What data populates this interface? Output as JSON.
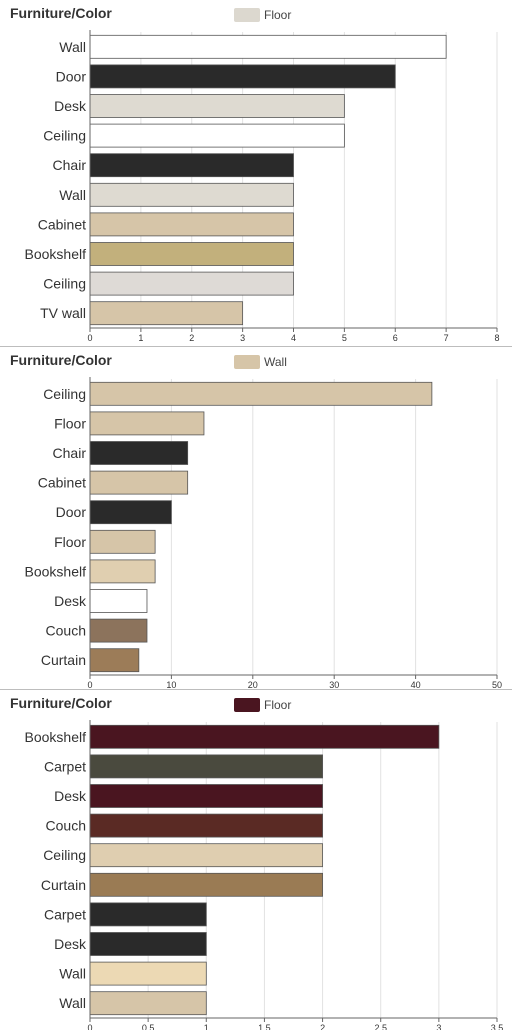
{
  "chart_data": [
    {
      "type": "bar",
      "title": "Furniture/Color",
      "legend": {
        "label": "Floor",
        "color": "#dcd8cf",
        "placement": "top-center"
      },
      "categories": [
        "Wall",
        "Door",
        "Desk",
        "Ceiling",
        "Chair",
        "Wall",
        "Cabinet",
        "Bookshelf",
        "Ceiling",
        "TV wall"
      ],
      "values": [
        7,
        6,
        5,
        5,
        4,
        4,
        4,
        4,
        4,
        3
      ],
      "colors": [
        "#ffffff",
        "#2a2a2a",
        "#dedad1",
        "#ffffff",
        "#2a2a2a",
        "#dedad1",
        "#d6c5a8",
        "#c2b07c",
        "#dedad6",
        "#d6c5a8"
      ],
      "xlim": [
        0,
        8
      ],
      "xticks": [
        "0",
        "1",
        "2",
        "3",
        "4",
        "5",
        "6",
        "7",
        "8"
      ],
      "orientation": "horizontal",
      "grid": true
    },
    {
      "type": "bar",
      "title": "Furniture/Color",
      "legend": {
        "label": "Wall",
        "color": "#d6c5a8",
        "placement": "top-center"
      },
      "categories": [
        "Ceiling",
        "Floor",
        "Chair",
        "Cabinet",
        "Door",
        "Floor",
        "Bookshelf",
        "Desk",
        "Couch",
        "Curtain"
      ],
      "values": [
        42,
        14,
        12,
        12,
        10,
        8,
        8,
        7,
        7,
        6
      ],
      "colors": [
        "#d6c5a8",
        "#d6c5a8",
        "#2a2a2a",
        "#d6c5a8",
        "#2a2a2a",
        "#d6c5a8",
        "#e0cfb0",
        "#ffffff",
        "#8c735c",
        "#9c7c58"
      ],
      "xlim": [
        0,
        50
      ],
      "xticks": [
        "0",
        "10",
        "20",
        "30",
        "40",
        "50"
      ],
      "orientation": "horizontal",
      "grid": true
    },
    {
      "type": "bar",
      "title": "Furniture/Color",
      "legend": {
        "label": "Floor",
        "color": "#4a1520",
        "placement": "top-center"
      },
      "categories": [
        "Bookshelf",
        "Carpet",
        "Desk",
        "Couch",
        "Ceiling",
        "Curtain",
        "Carpet",
        "Desk",
        "Wall",
        "Wall"
      ],
      "values": [
        3,
        2,
        2,
        2,
        2,
        2,
        1,
        1,
        1,
        1
      ],
      "colors": [
        "#4a1520",
        "#4a4a3e",
        "#4a1520",
        "#5a2a24",
        "#dfceb0",
        "#9a7b54",
        "#2a2a2a",
        "#2a2a2a",
        "#ecd9b4",
        "#d6c5a8"
      ],
      "xlim": [
        0,
        3.5
      ],
      "xticks": [
        "0",
        "0.5",
        "1",
        "1.5",
        "2",
        "2.5",
        "3",
        "3.5"
      ],
      "orientation": "horizontal",
      "grid": true
    }
  ]
}
